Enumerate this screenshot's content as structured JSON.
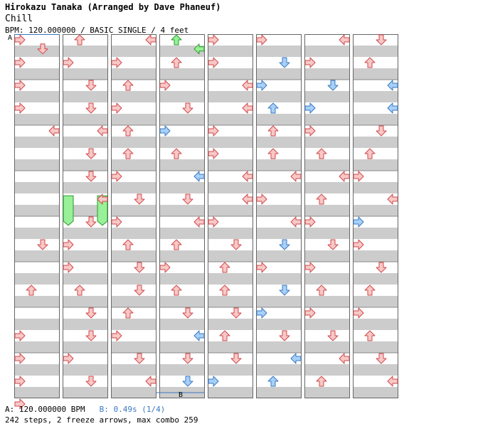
{
  "header": {
    "title": "Hirokazu Tanaka (Arranged by Dave Phaneuf)",
    "song": "Chill",
    "info": "BPM: 120.000000 / BASIC SINGLE / 4 feet"
  },
  "markers": {
    "a": "A",
    "b": "B"
  },
  "footer": {
    "bpm_line": "A: 120.000000 BPM",
    "stop_line": "B: 0.49s (1/4)",
    "stats": "242 steps, 2 freeze arrows, max combo 259"
  },
  "colors": {
    "normal": "#f8c8c8",
    "normal_stroke": "#d04848",
    "sixteenth": "#a8d0f8",
    "sixteenth_stroke": "#3a78c0",
    "green": "#98f098",
    "green_stroke": "#2a9a2a",
    "band": "#cccccc"
  },
  "chart_data": {
    "type": "step-chart",
    "columns": 8,
    "measures_per_column": 8,
    "lanes": [
      "left",
      "down",
      "up",
      "right"
    ],
    "notes": [
      [
        0,
        6.5,
        0,
        "r"
      ],
      [
        0,
        7.5,
        0,
        "r"
      ],
      [
        0,
        8.0,
        0,
        "r"
      ],
      [
        0,
        7.0,
        0,
        "r"
      ],
      [
        0,
        5.5,
        1,
        "r"
      ],
      [
        0,
        4.5,
        2,
        "r"
      ],
      [
        0,
        2.0,
        3,
        "r"
      ],
      [
        0,
        1.5,
        0,
        "r"
      ],
      [
        0,
        1.0,
        0,
        "r"
      ],
      [
        0,
        0.5,
        0,
        "r"
      ],
      [
        0,
        0.0,
        0,
        "r"
      ],
      [
        0,
        0.2,
        2,
        "r"
      ],
      [
        1,
        0.0,
        1,
        "r"
      ],
      [
        1,
        0.5,
        0,
        "r"
      ],
      [
        1,
        1.0,
        2,
        "r"
      ],
      [
        1,
        1.5,
        2,
        "r"
      ],
      [
        1,
        2.0,
        3,
        "r"
      ],
      [
        1,
        2.5,
        2,
        "r"
      ],
      [
        1,
        3.0,
        2,
        "r"
      ],
      [
        1,
        3.5,
        3,
        "r"
      ],
      [
        1,
        4.0,
        2,
        "r"
      ],
      [
        1,
        4.5,
        0,
        "r"
      ],
      [
        1,
        5.0,
        0,
        "r"
      ],
      [
        1,
        5.5,
        1,
        "r"
      ],
      [
        1,
        6.0,
        2,
        "r"
      ],
      [
        1,
        6.5,
        2,
        "r"
      ],
      [
        1,
        7.0,
        0,
        "r"
      ],
      [
        1,
        7.5,
        2,
        "r"
      ],
      [
        2,
        0.0,
        3,
        "r"
      ],
      [
        2,
        0.5,
        0,
        "r"
      ],
      [
        2,
        1.0,
        1,
        "r"
      ],
      [
        2,
        1.5,
        0,
        "r"
      ],
      [
        2,
        2.0,
        1,
        "r"
      ],
      [
        2,
        2.5,
        1,
        "r"
      ],
      [
        2,
        3.0,
        0,
        "r"
      ],
      [
        2,
        3.5,
        2,
        "r"
      ],
      [
        2,
        4.0,
        0,
        "r"
      ],
      [
        2,
        4.5,
        1,
        "r"
      ],
      [
        2,
        5.0,
        2,
        "r"
      ],
      [
        2,
        5.5,
        2,
        "r"
      ],
      [
        2,
        6.0,
        1,
        "r"
      ],
      [
        2,
        6.5,
        0,
        "r"
      ],
      [
        2,
        7.0,
        2,
        "r"
      ],
      [
        2,
        7.5,
        3,
        "r"
      ],
      [
        3,
        0.0,
        1,
        "g"
      ],
      [
        3,
        0.2,
        3,
        "g"
      ],
      [
        3,
        0.5,
        1,
        "r"
      ],
      [
        3,
        1.0,
        0,
        "r"
      ],
      [
        3,
        1.5,
        2,
        "r"
      ],
      [
        3,
        2.0,
        0,
        "b"
      ],
      [
        3,
        2.5,
        1,
        "r"
      ],
      [
        3,
        3.0,
        3,
        "b"
      ],
      [
        3,
        3.5,
        2,
        "r"
      ],
      [
        3,
        4.0,
        3,
        "r"
      ],
      [
        3,
        4.5,
        1,
        "r"
      ],
      [
        3,
        5.0,
        0,
        "r"
      ],
      [
        3,
        5.5,
        1,
        "r"
      ],
      [
        3,
        6.0,
        2,
        "r"
      ],
      [
        3,
        6.5,
        3,
        "b"
      ],
      [
        3,
        7.0,
        2,
        "r"
      ],
      [
        3,
        7.5,
        2,
        "b"
      ],
      [
        4,
        0.0,
        0,
        "r"
      ],
      [
        4,
        0.5,
        0,
        "r"
      ],
      [
        4,
        1.0,
        3,
        "r"
      ],
      [
        4,
        1.5,
        3,
        "r"
      ],
      [
        4,
        2.0,
        0,
        "r"
      ],
      [
        4,
        2.5,
        0,
        "r"
      ],
      [
        4,
        3.0,
        3,
        "r"
      ],
      [
        4,
        3.5,
        3,
        "r"
      ],
      [
        4,
        4.0,
        0,
        "r"
      ],
      [
        4,
        4.5,
        2,
        "r"
      ],
      [
        4,
        5.0,
        1,
        "r"
      ],
      [
        4,
        5.5,
        1,
        "r"
      ],
      [
        4,
        6.0,
        2,
        "r"
      ],
      [
        4,
        6.5,
        1,
        "r"
      ],
      [
        4,
        7.0,
        2,
        "r"
      ],
      [
        4,
        7.5,
        0,
        "b"
      ],
      [
        5,
        0.0,
        0,
        "r"
      ],
      [
        5,
        0.5,
        2,
        "b"
      ],
      [
        5,
        1.0,
        0,
        "b"
      ],
      [
        5,
        1.5,
        1,
        "b"
      ],
      [
        5,
        2.0,
        1,
        "r"
      ],
      [
        5,
        2.5,
        1,
        "r"
      ],
      [
        5,
        3.0,
        3,
        "r"
      ],
      [
        5,
        3.5,
        0,
        "r"
      ],
      [
        5,
        4.0,
        3,
        "r"
      ],
      [
        5,
        4.5,
        2,
        "b"
      ],
      [
        5,
        5.0,
        0,
        "r"
      ],
      [
        5,
        5.5,
        2,
        "b"
      ],
      [
        5,
        6.0,
        0,
        "b"
      ],
      [
        5,
        6.5,
        2,
        "r"
      ],
      [
        5,
        7.0,
        3,
        "b"
      ],
      [
        5,
        7.5,
        1,
        "b"
      ],
      [
        6,
        0.0,
        3,
        "r"
      ],
      [
        6,
        0.5,
        0,
        "r"
      ],
      [
        6,
        1.0,
        2,
        "b"
      ],
      [
        6,
        1.5,
        0,
        "b"
      ],
      [
        6,
        2.0,
        0,
        "r"
      ],
      [
        6,
        2.5,
        1,
        "r"
      ],
      [
        6,
        3.0,
        3,
        "r"
      ],
      [
        6,
        3.5,
        1,
        "r"
      ],
      [
        6,
        4.0,
        0,
        "r"
      ],
      [
        6,
        4.5,
        2,
        "r"
      ],
      [
        6,
        5.0,
        0,
        "r"
      ],
      [
        6,
        5.5,
        1,
        "r"
      ],
      [
        6,
        6.0,
        0,
        "r"
      ],
      [
        6,
        6.5,
        2,
        "r"
      ],
      [
        6,
        7.0,
        3,
        "r"
      ],
      [
        6,
        7.5,
        1,
        "r"
      ],
      [
        7,
        0.0,
        2,
        "r"
      ],
      [
        7,
        0.5,
        1,
        "r"
      ],
      [
        7,
        1.0,
        3,
        "b"
      ],
      [
        7,
        1.5,
        3,
        "b"
      ],
      [
        7,
        2.0,
        2,
        "r"
      ],
      [
        7,
        2.5,
        1,
        "r"
      ],
      [
        7,
        3.0,
        0,
        "r"
      ],
      [
        7,
        3.5,
        3,
        "r"
      ],
      [
        7,
        4.0,
        0,
        "b"
      ],
      [
        7,
        4.5,
        0,
        "r"
      ],
      [
        7,
        5.0,
        2,
        "r"
      ],
      [
        7,
        5.5,
        1,
        "r"
      ],
      [
        7,
        6.0,
        0,
        "r"
      ],
      [
        7,
        6.5,
        1,
        "r"
      ],
      [
        7,
        7.0,
        2,
        "r"
      ],
      [
        7,
        7.5,
        3,
        "r"
      ]
    ],
    "freezes": [
      [
        1,
        3.55,
        0,
        4.2
      ],
      [
        1,
        3.55,
        3,
        4.2
      ]
    ]
  }
}
